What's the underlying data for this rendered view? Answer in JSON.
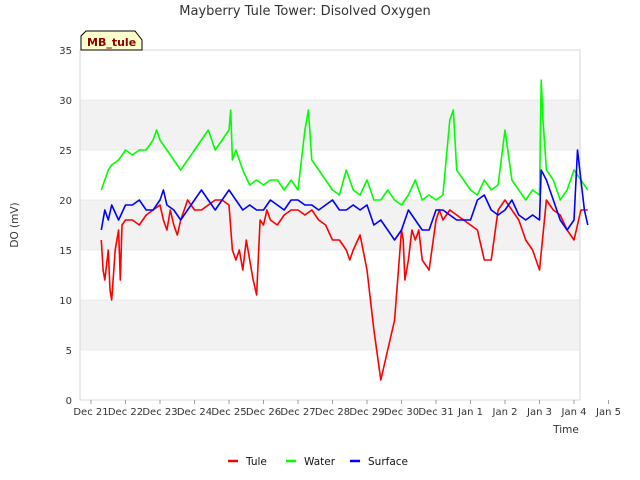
{
  "chart_data": {
    "type": "line",
    "title": "Mayberry Tule Tower: Disolved Oxygen",
    "xlabel": "Time",
    "ylabel": "DO (mV)",
    "badge": "MB_tule",
    "ylim": [
      0,
      35
    ],
    "yticks": [
      0,
      5,
      10,
      15,
      20,
      25,
      30,
      35
    ],
    "xlim": [
      0,
      14
    ],
    "xticks": [
      {
        "x": 0,
        "label": "Dec 21"
      },
      {
        "x": 1,
        "label": "Dec 22"
      },
      {
        "x": 2,
        "label": "Dec 23"
      },
      {
        "x": 3,
        "label": "Dec 24"
      },
      {
        "x": 4,
        "label": "Dec 25"
      },
      {
        "x": 5,
        "label": "Dec 26"
      },
      {
        "x": 6,
        "label": "Dec 27"
      },
      {
        "x": 7,
        "label": "Dec 28"
      },
      {
        "x": 8,
        "label": "Dec 29"
      },
      {
        "x": 9,
        "label": "Dec 30"
      },
      {
        "x": 10,
        "label": "Dec 31"
      },
      {
        "x": 11,
        "label": "Jan 1"
      },
      {
        "x": 12,
        "label": "Jan 2"
      },
      {
        "x": 13,
        "label": "Jan 3"
      },
      {
        "x": 14,
        "label": "Jan 4"
      },
      {
        "x": 15,
        "label": "Jan 5"
      }
    ],
    "grid": "horizontal bands",
    "legend_position": "bottom",
    "series": [
      {
        "name": "Tule",
        "color": "#ff0000",
        "x": [
          0.3,
          0.35,
          0.4,
          0.5,
          0.55,
          0.6,
          0.7,
          0.8,
          0.85,
          0.9,
          1.0,
          1.2,
          1.4,
          1.6,
          1.8,
          2.0,
          2.1,
          2.2,
          2.3,
          2.4,
          2.5,
          2.6,
          2.7,
          2.8,
          2.9,
          3.0,
          3.2,
          3.4,
          3.6,
          3.8,
          4.0,
          4.1,
          4.2,
          4.3,
          4.4,
          4.5,
          4.6,
          4.7,
          4.8,
          4.9,
          5.0,
          5.1,
          5.2,
          5.4,
          5.6,
          5.8,
          6.0,
          6.2,
          6.4,
          6.6,
          6.8,
          7.0,
          7.2,
          7.4,
          7.5,
          7.6,
          7.8,
          8.0,
          8.2,
          8.4,
          8.6,
          8.8,
          9.0,
          9.05,
          9.1,
          9.2,
          9.3,
          9.4,
          9.5,
          9.6,
          9.8,
          10.0,
          10.1,
          10.2,
          10.4,
          10.6,
          10.8,
          11.0,
          11.2,
          11.4,
          11.6,
          11.8,
          12.0,
          12.2,
          12.4,
          12.6,
          12.8,
          13.0,
          13.2,
          13.4,
          13.6,
          13.8,
          14.0,
          14.2,
          14.4
        ],
        "y": [
          16,
          13,
          12,
          15,
          11,
          10,
          15,
          17,
          12,
          17.5,
          18,
          18,
          17.5,
          18.5,
          19,
          19.5,
          18,
          17,
          19,
          17.5,
          16.5,
          18,
          19,
          20,
          19.5,
          19,
          19,
          19.5,
          20,
          20,
          19.5,
          15,
          14,
          15,
          13,
          16,
          14,
          12,
          10.5,
          18,
          17.5,
          19,
          18,
          17.5,
          18.5,
          19,
          19,
          18.5,
          19,
          18,
          17.5,
          16,
          16,
          15,
          14,
          15,
          16.5,
          13,
          7,
          2,
          5,
          8,
          17,
          16,
          12,
          14,
          17,
          16,
          17,
          14,
          13,
          18,
          19,
          18,
          19,
          18.5,
          18,
          17.5,
          17,
          14,
          14,
          19,
          20,
          19,
          18,
          16,
          15,
          13,
          20,
          19,
          18.5,
          17,
          16,
          19,
          19
        ]
      },
      {
        "name": "Water",
        "color": "#00ff00",
        "x": [
          0.3,
          0.4,
          0.5,
          0.6,
          0.8,
          1.0,
          1.2,
          1.4,
          1.6,
          1.8,
          1.9,
          2.0,
          2.2,
          2.4,
          2.6,
          2.8,
          3.0,
          3.2,
          3.4,
          3.6,
          3.8,
          4.0,
          4.05,
          4.1,
          4.2,
          4.4,
          4.6,
          4.8,
          5.0,
          5.2,
          5.4,
          5.6,
          5.8,
          6.0,
          6.2,
          6.3,
          6.4,
          6.6,
          6.8,
          7.0,
          7.2,
          7.4,
          7.6,
          7.8,
          8.0,
          8.2,
          8.4,
          8.6,
          8.8,
          9.0,
          9.2,
          9.4,
          9.6,
          9.8,
          10.0,
          10.2,
          10.4,
          10.5,
          10.6,
          10.8,
          11.0,
          11.2,
          11.4,
          11.6,
          11.8,
          12.0,
          12.2,
          12.4,
          12.6,
          12.8,
          13.0,
          13.05,
          13.1,
          13.2,
          13.4,
          13.6,
          13.8,
          14.0,
          14.2,
          14.4
        ],
        "y": [
          21,
          22,
          23,
          23.5,
          24,
          25,
          24.5,
          25,
          25,
          26,
          27,
          26,
          25,
          24,
          23,
          24,
          25,
          26,
          27,
          25,
          26,
          27,
          29,
          24,
          25,
          23,
          21.5,
          22,
          21.5,
          22,
          22,
          21,
          22,
          21,
          27,
          29,
          24,
          23,
          22,
          21,
          20.5,
          23,
          21,
          20.5,
          22,
          20,
          20,
          21,
          20,
          19.5,
          20.5,
          22,
          20,
          20.5,
          20,
          20.5,
          28,
          29,
          23,
          22,
          21,
          20.5,
          22,
          21,
          21.5,
          27,
          22,
          21,
          20,
          21,
          20.5,
          32,
          28,
          23,
          22,
          20,
          21,
          23,
          22,
          21
        ]
      },
      {
        "name": "Surface",
        "color": "#0000ff",
        "x": [
          0.3,
          0.4,
          0.5,
          0.6,
          0.8,
          1.0,
          1.2,
          1.4,
          1.6,
          1.8,
          2.0,
          2.1,
          2.2,
          2.4,
          2.6,
          2.8,
          3.0,
          3.2,
          3.4,
          3.6,
          3.8,
          4.0,
          4.2,
          4.4,
          4.6,
          4.8,
          5.0,
          5.2,
          5.4,
          5.6,
          5.8,
          6.0,
          6.2,
          6.4,
          6.6,
          6.8,
          7.0,
          7.2,
          7.4,
          7.6,
          7.8,
          8.0,
          8.2,
          8.4,
          8.6,
          8.8,
          9.0,
          9.2,
          9.4,
          9.6,
          9.8,
          10.0,
          10.2,
          10.4,
          10.6,
          10.8,
          11.0,
          11.2,
          11.4,
          11.6,
          11.8,
          12.0,
          12.2,
          12.4,
          12.6,
          12.8,
          13.0,
          13.05,
          13.2,
          13.4,
          13.6,
          13.8,
          14.0,
          14.1,
          14.2,
          14.3,
          14.4
        ],
        "y": [
          17,
          19,
          18,
          19.5,
          18,
          19.5,
          19.5,
          20,
          19,
          19,
          20,
          21,
          19.5,
          19,
          18,
          19,
          20,
          21,
          20,
          19,
          20,
          21,
          20,
          19,
          19.5,
          19,
          19,
          20,
          19.5,
          19,
          20,
          20,
          19.5,
          19.5,
          19,
          19.5,
          20,
          19,
          19,
          19.5,
          19,
          19.5,
          17.5,
          18,
          17,
          16,
          17,
          19,
          18,
          17,
          17,
          19,
          19,
          18.5,
          18,
          18,
          18,
          20,
          20.5,
          19,
          18.5,
          19,
          20,
          18.5,
          18,
          18.5,
          18,
          23,
          22,
          20,
          18,
          17,
          18,
          25,
          22,
          19,
          17.5
        ]
      }
    ]
  }
}
